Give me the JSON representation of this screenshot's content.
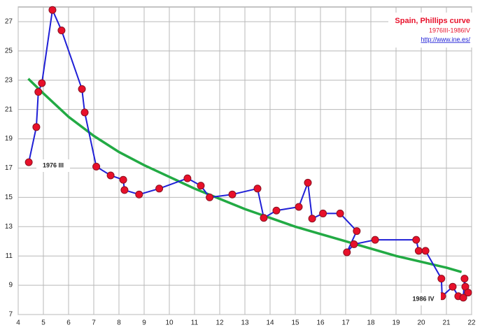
{
  "chart_data": {
    "type": "line",
    "title": "Spain, Phillips curve",
    "subtitle": "1976III-1986IV",
    "source": "http://www.ine.es/",
    "annotations": [
      "1976 III",
      "1986 IV"
    ],
    "xlim": [
      4,
      22
    ],
    "ylim": [
      7,
      28
    ],
    "xticks": [
      4,
      5,
      6,
      7,
      8,
      9,
      10,
      11,
      12,
      13,
      14,
      15,
      16,
      17,
      18,
      19,
      20,
      21,
      22
    ],
    "yticks": [
      7,
      9,
      11,
      13,
      15,
      17,
      19,
      21,
      23,
      25,
      27
    ],
    "grid": true,
    "series": [
      {
        "color": "#1f1fd6",
        "marker_color": "#e8102a",
        "markers": true,
        "x": [
          4.42,
          4.72,
          4.8,
          4.94,
          5.36,
          5.72,
          6.53,
          6.64,
          7.1,
          7.67,
          8.17,
          8.22,
          8.8,
          9.6,
          10.72,
          11.25,
          11.6,
          12.5,
          13.5,
          13.75,
          14.25,
          15.14,
          15.5,
          15.67,
          16.1,
          16.78,
          17.44,
          17.05,
          17.33,
          18.17,
          19.8,
          19.9,
          20.17,
          20.8,
          20.83,
          21.25,
          21.47,
          21.67,
          21.72,
          21.75,
          21.86
        ],
        "values": [
          17.4,
          19.8,
          22.2,
          22.8,
          27.8,
          26.4,
          22.4,
          20.8,
          17.1,
          16.5,
          16.2,
          15.5,
          15.2,
          15.6,
          16.3,
          15.8,
          15.0,
          15.2,
          15.6,
          13.6,
          14.1,
          14.35,
          16.0,
          13.55,
          13.9,
          13.9,
          12.7,
          11.25,
          11.8,
          12.1,
          12.1,
          11.35,
          11.35,
          9.45,
          8.25,
          8.9,
          8.25,
          8.15,
          9.45,
          8.9,
          8.5
        ]
      },
      {
        "color": "#22aa44",
        "markers": false,
        "x": [
          4.4,
          5,
          6,
          7,
          8,
          9,
          10,
          11,
          12,
          13,
          14,
          15,
          16,
          17,
          18,
          19,
          20,
          21,
          21.6
        ],
        "values": [
          23.1,
          22.1,
          20.5,
          19.2,
          18.1,
          17.2,
          16.4,
          15.6,
          14.9,
          14.2,
          13.6,
          13.0,
          12.5,
          12.0,
          11.5,
          11.0,
          10.6,
          10.2,
          9.9
        ]
      }
    ]
  }
}
